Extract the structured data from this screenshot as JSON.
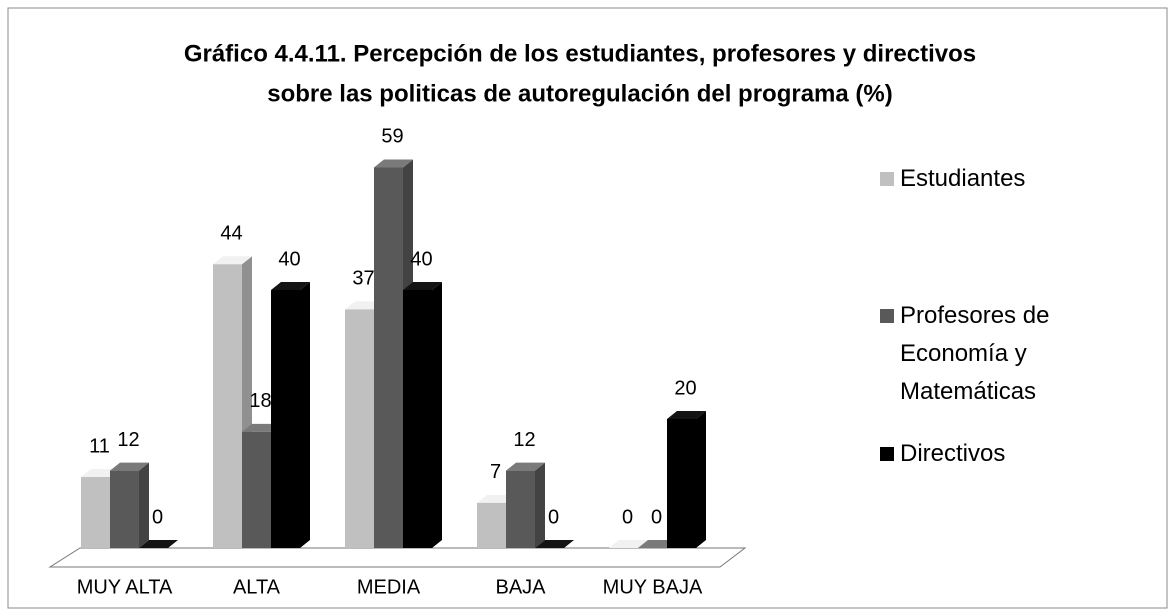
{
  "chart_data": {
    "type": "bar3d",
    "title": "Gráfico 4.4.11. Percepción de los estudiantes, profesores y directivos",
    "subtitle": "sobre las politicas de autoregulación del programa (%)",
    "categories": [
      "MUY ALTA",
      "ALTA",
      "MEDIA",
      "BAJA",
      "MUY BAJA"
    ],
    "series": [
      {
        "name": "Estudiantes",
        "color": "#c0c0c0",
        "values": [
          11,
          44,
          37,
          7,
          0
        ]
      },
      {
        "name": "Profesores de Economía y Matemáticas",
        "color": "#595959",
        "values": [
          12,
          18,
          59,
          12,
          0
        ]
      },
      {
        "name": "Directivos",
        "color": "#000000",
        "values": [
          0,
          40,
          40,
          0,
          20
        ]
      }
    ],
    "legend": "right"
  }
}
